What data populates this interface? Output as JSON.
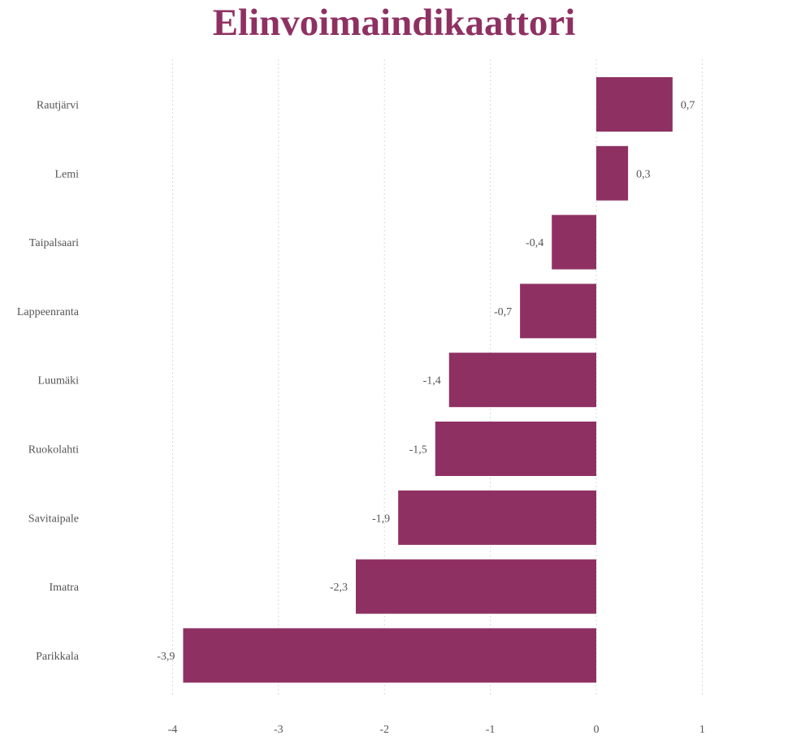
{
  "chart_data": {
    "type": "bar",
    "orientation": "horizontal",
    "title": "Elinvoimaindikaattori",
    "categories": [
      "Rautjärvi",
      "Lemi",
      "Taipalsaari",
      "Lappeenranta",
      "Luumäki",
      "Ruokolahti",
      "Savitaipale",
      "Imatra",
      "Parikkala"
    ],
    "values": [
      0.72,
      0.3,
      -0.42,
      -0.72,
      -1.39,
      -1.52,
      -1.87,
      -2.27,
      -3.9
    ],
    "value_labels": [
      "0,7",
      "0,3",
      "-0,4",
      "-0,7",
      "-1,4",
      "-1,5",
      "-1,9",
      "-2,3",
      "-3,9"
    ],
    "xticks": [
      -4,
      -3,
      -2,
      -1,
      0,
      1
    ],
    "xtick_labels": [
      "-4",
      "-3",
      "-2",
      "-1",
      "0",
      "1"
    ],
    "xlim": [
      -4,
      1
    ],
    "xlabel": "",
    "ylabel": "",
    "grid": "vertical dotted",
    "legend": "none",
    "colors": {
      "bar": "#8e3162",
      "title": "#8e3162",
      "grid": "#d9d9d9",
      "text": "#555555"
    }
  }
}
